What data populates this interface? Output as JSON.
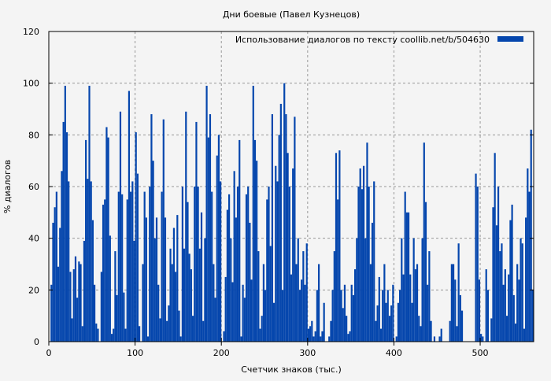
{
  "chart_data": {
    "type": "bar",
    "title": "Дни боевые (Павел Кузнецов)",
    "xlabel": "Счетчик знаков (тыс.)",
    "ylabel": "% диалогов",
    "xlim": [
      0,
      562
    ],
    "ylim": [
      0,
      120
    ],
    "xticks": [
      0,
      100,
      200,
      300,
      400,
      500
    ],
    "yticks": [
      0,
      20,
      40,
      60,
      80,
      100,
      120
    ],
    "grid": true,
    "legend_position": "top-right",
    "series": [
      {
        "name": "Использование диалогов по тексту  coollib.net/b/504630",
        "color": "#0546ad",
        "x_start": 0,
        "x_step": 2,
        "values": [
          0,
          22,
          46,
          52,
          58,
          29,
          44,
          66,
          85,
          99,
          81,
          62,
          27,
          9,
          28,
          33,
          17,
          31,
          30,
          6,
          39,
          78,
          63,
          99,
          62,
          47,
          22,
          7,
          5,
          0,
          27,
          53,
          55,
          83,
          79,
          41,
          3,
          5,
          35,
          18,
          58,
          89,
          57,
          19,
          5,
          55,
          97,
          58,
          62,
          39,
          81,
          65,
          6,
          0,
          30,
          58,
          48,
          2,
          60,
          88,
          70,
          40,
          48,
          22,
          9,
          58,
          86,
          48,
          8,
          14,
          36,
          30,
          44,
          27,
          49,
          12,
          2,
          60,
          36,
          89,
          54,
          34,
          28,
          10,
          60,
          85,
          60,
          36,
          50,
          8,
          40,
          99,
          79,
          88,
          58,
          30,
          17,
          72,
          80,
          62,
          0,
          4,
          25,
          51,
          57,
          40,
          23,
          66,
          48,
          60,
          78,
          2,
          22,
          17,
          57,
          60,
          46,
          24,
          99,
          78,
          70,
          35,
          5,
          10,
          30,
          20,
          55,
          60,
          37,
          88,
          15,
          68,
          62,
          80,
          92,
          20,
          100,
          88,
          73,
          60,
          26,
          67,
          87,
          30,
          40,
          20,
          24,
          35,
          22,
          38,
          5,
          6,
          8,
          2,
          4,
          20,
          30,
          2,
          4,
          15,
          0,
          0,
          2,
          8,
          20,
          35,
          73,
          55,
          74,
          20,
          13,
          22,
          10,
          3,
          4,
          22,
          18,
          28,
          40,
          60,
          67,
          59,
          68,
          40,
          77,
          60,
          30,
          46,
          62,
          8,
          14,
          25,
          5,
          20,
          30,
          15,
          20,
          10,
          14,
          22,
          0,
          2,
          15,
          20,
          40,
          26,
          58,
          50,
          50,
          26,
          15,
          40,
          28,
          30,
          10,
          6,
          40,
          77,
          54,
          22,
          35,
          8,
          0,
          2,
          0,
          0,
          2,
          5,
          0,
          0,
          0,
          0,
          8,
          30,
          30,
          24,
          6,
          38,
          18,
          12,
          0,
          0,
          0,
          0,
          0,
          0,
          0,
          65,
          60,
          24,
          3,
          2,
          0,
          28,
          20,
          0,
          9,
          52,
          73,
          45,
          60,
          35,
          38,
          22,
          28,
          10,
          26,
          47,
          53,
          18,
          7,
          30,
          24,
          40,
          38,
          5,
          48,
          67,
          58,
          82,
          20
        ]
      }
    ]
  }
}
